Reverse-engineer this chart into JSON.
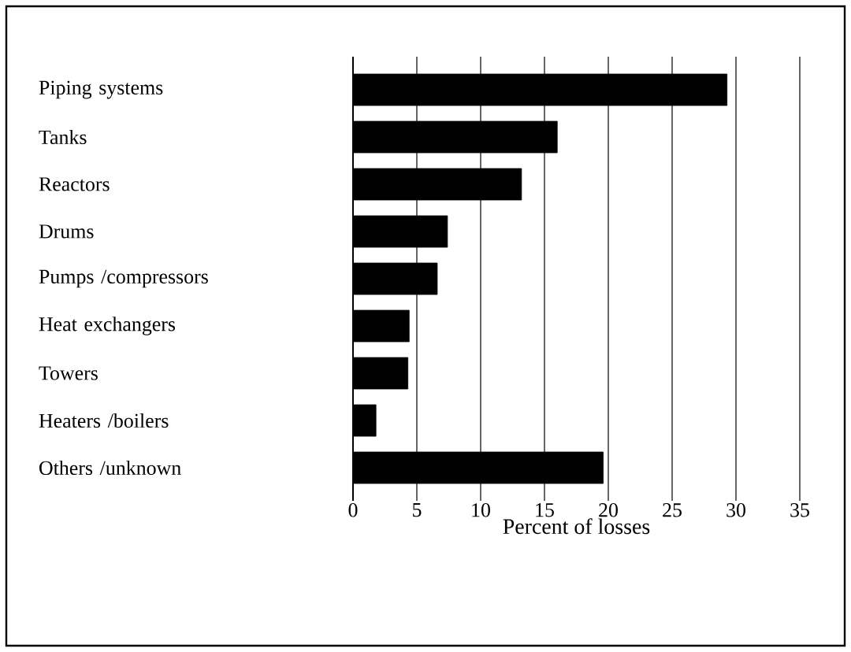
{
  "chart_data": {
    "type": "bar",
    "orientation": "horizontal",
    "xlabel": "Percent of losses",
    "categories": [
      "Piping systems",
      "Tanks",
      "Reactors",
      "Drums",
      "Pumps /compressors",
      "Heat exchangers",
      "Towers",
      "Heaters /boilers",
      "Others /unknown"
    ],
    "values": [
      29.3,
      16,
      13.2,
      7.4,
      6.6,
      4.4,
      4.3,
      1.8,
      19.6
    ],
    "color": "#000000",
    "xlim": [
      0,
      35
    ],
    "xticks": [
      0,
      5,
      10,
      15,
      20,
      25,
      30,
      35
    ],
    "grid": "x"
  }
}
